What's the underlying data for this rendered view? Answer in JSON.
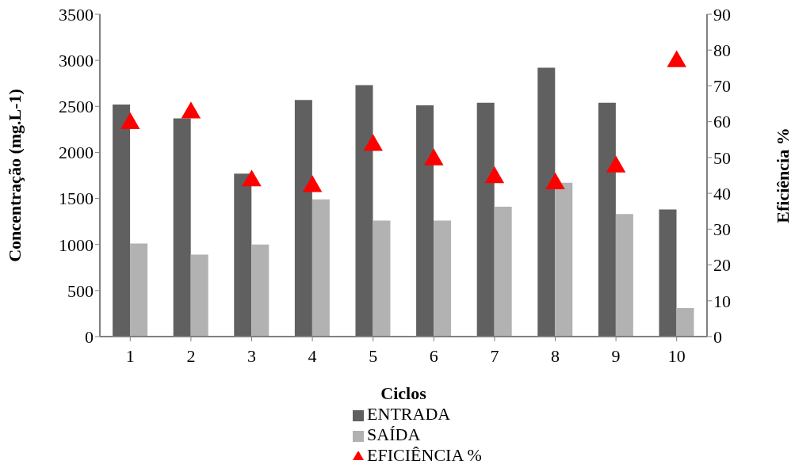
{
  "chart_data": {
    "type": "bar",
    "xlabel": "Ciclos",
    "ylabel": "Concentração (mg.L-1)",
    "y2label": "Eficiência %",
    "categories": [
      "1",
      "2",
      "3",
      "4",
      "5",
      "6",
      "7",
      "8",
      "9",
      "10"
    ],
    "series": [
      {
        "name": "ENTRADA",
        "color": "#606060",
        "values": [
          2520,
          2370,
          1770,
          2570,
          2730,
          2510,
          2540,
          2920,
          2540,
          1380
        ]
      },
      {
        "name": "SAÍDA",
        "color": "#b2b2b2",
        "values": [
          1010,
          890,
          1000,
          1490,
          1260,
          1260,
          1410,
          1670,
          1330,
          310
        ]
      },
      {
        "name": "EFICIÊNCIA %",
        "type": "scatter",
        "axis": "y2",
        "color": "#ff0000",
        "marker": "triangle",
        "values": [
          59.5,
          62.5,
          43.5,
          41.9,
          53.4,
          49.4,
          44.4,
          42.7,
          47.4,
          76.8
        ]
      }
    ],
    "ylim": [
      0,
      3500
    ],
    "yticks": [
      0,
      500,
      1000,
      1500,
      2000,
      2500,
      3000,
      3500
    ],
    "y2lim": [
      0,
      90
    ],
    "y2ticks": [
      0,
      10,
      20,
      30,
      40,
      50,
      60,
      70,
      80,
      90
    ],
    "grid": false,
    "legend": "bottom"
  }
}
